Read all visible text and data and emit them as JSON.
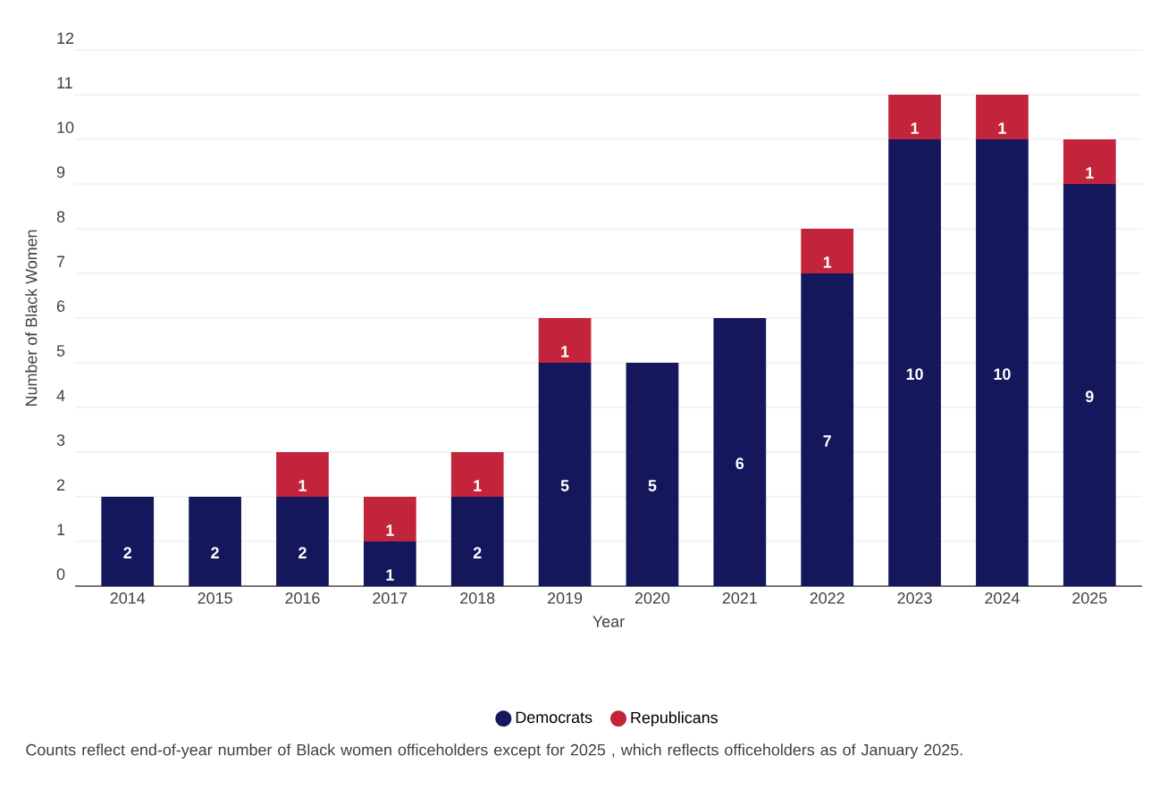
{
  "chart_data": {
    "type": "bar",
    "stacked": true,
    "xlabel": "Year",
    "ylabel": "Number of Black Women",
    "categories": [
      "2014",
      "2015",
      "2016",
      "2017",
      "2018",
      "2019",
      "2020",
      "2021",
      "2022",
      "2023",
      "2024",
      "2025"
    ],
    "series": [
      {
        "name": "Democrats",
        "color": "#14175c",
        "values": [
          2,
          2,
          2,
          1,
          2,
          5,
          5,
          6,
          7,
          10,
          10,
          9
        ]
      },
      {
        "name": "Republicans",
        "color": "#c2243b",
        "values": [
          null,
          null,
          1,
          1,
          1,
          1,
          null,
          null,
          1,
          1,
          1,
          1
        ]
      }
    ],
    "ylim": [
      0,
      12
    ],
    "yticks": [
      0,
      1,
      2,
      3,
      4,
      5,
      6,
      7,
      8,
      9,
      10,
      11,
      12
    ],
    "grid": "y",
    "legend": "bottom",
    "data_labels": true,
    "annotations": [
      "Counts reflect end-of-year number of Black women officeholders except for 2025 , which reflects officeholders as of January 2025."
    ]
  }
}
